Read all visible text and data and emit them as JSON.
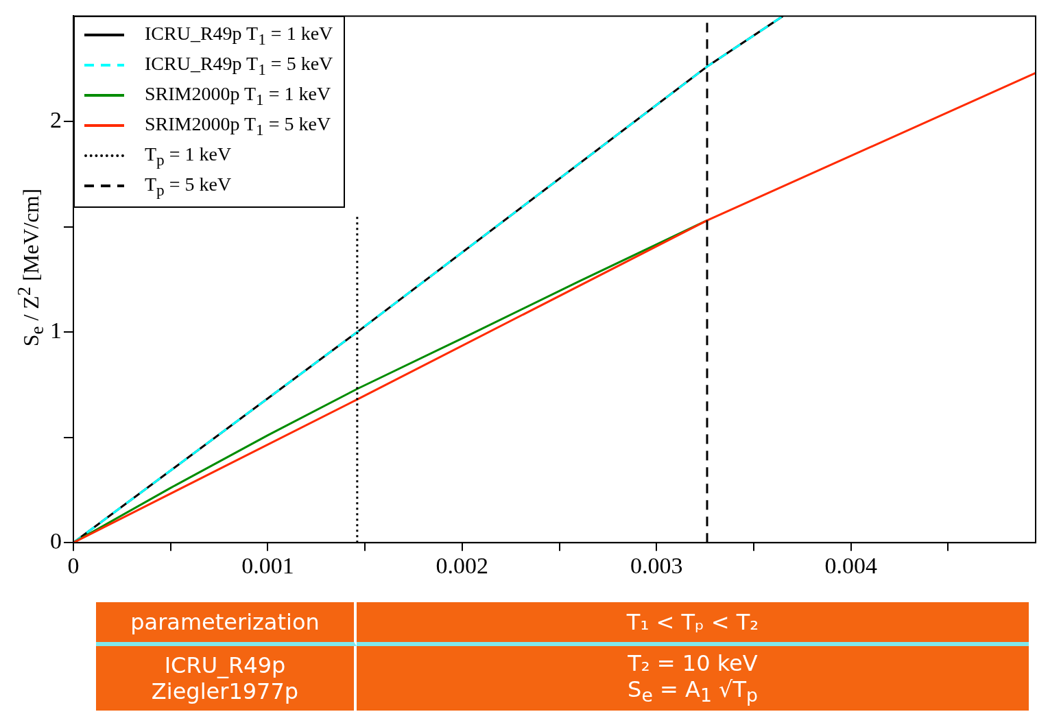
{
  "chart_data": {
    "type": "line",
    "ylabel": "S$_{e}$ / Z$^{2}$ [MeV/cm]",
    "xlim": [
      0,
      0.00495
    ],
    "ylim": [
      0,
      2.5
    ],
    "xticks": [
      0,
      {
        "value": 0.0005,
        "label": null
      },
      0.001,
      {
        "value": 0.0015,
        "label": null
      },
      0.002,
      {
        "value": 0.0025,
        "label": null
      },
      0.003,
      {
        "value": 0.0035,
        "label": null
      },
      0.004,
      {
        "value": 0.0045,
        "label": null
      }
    ],
    "yticks": [
      0,
      {
        "value": 0.5,
        "label": null
      },
      1,
      {
        "value": 1.5,
        "label": null
      },
      2
    ],
    "grid": false,
    "legend": "top left",
    "marker": "none",
    "series": [
      {
        "name": "ICRU_R49p T$_{1}$ = 1 keV",
        "color": "#000000",
        "line_style": "solid",
        "x": [
          0,
          0.00146,
          0.00326,
          0.00365
        ],
        "values": [
          0,
          1.0,
          2.26,
          2.5
        ]
      },
      {
        "name": "ICRU_R49p T$_{1}$ = 5 keV",
        "color": "#00ffff",
        "line_style": "dashed",
        "x": [
          0,
          0.00146,
          0.00326,
          0.00365
        ],
        "values": [
          0,
          1.0,
          2.26,
          2.5
        ]
      },
      {
        "name": "SRIM2000p T$_{1}$ = 1 keV",
        "color": "#008c00",
        "line_style": "solid",
        "x": [
          0,
          0.0005,
          0.001,
          0.00146,
          0.002,
          0.0026,
          0.00326
        ],
        "values": [
          0,
          0.26,
          0.51,
          0.73,
          0.97,
          1.24,
          1.53
        ]
      },
      {
        "name": "SRIM2000p T$_{1}$ = 5 keV",
        "color": "#ff2a00",
        "line_style": "solid",
        "x": [
          0,
          0.00146,
          0.00326,
          0.00495
        ],
        "values": [
          0,
          0.68,
          1.53,
          2.23
        ]
      },
      {
        "name": "T$_{p}$ = 1 keV",
        "color": "#000000",
        "line_style": "dotted",
        "x": [
          0.00146,
          0.00146
        ],
        "values": [
          0,
          1.55
        ]
      },
      {
        "name": "T$_{p}$ = 5 keV",
        "color": "#000000",
        "line_style": "dashed",
        "x": [
          0.00326,
          0.00326
        ],
        "values": [
          0,
          2.5
        ]
      }
    ],
    "annotations": [
      "parameterization",
      "T₁ < Tₚ < T₂",
      "ICRU_R49p\nZiegler1977p",
      "T₂ = 10 keV\nS$_{e}$ = A$_{1}$ √T$_{p}$"
    ]
  }
}
